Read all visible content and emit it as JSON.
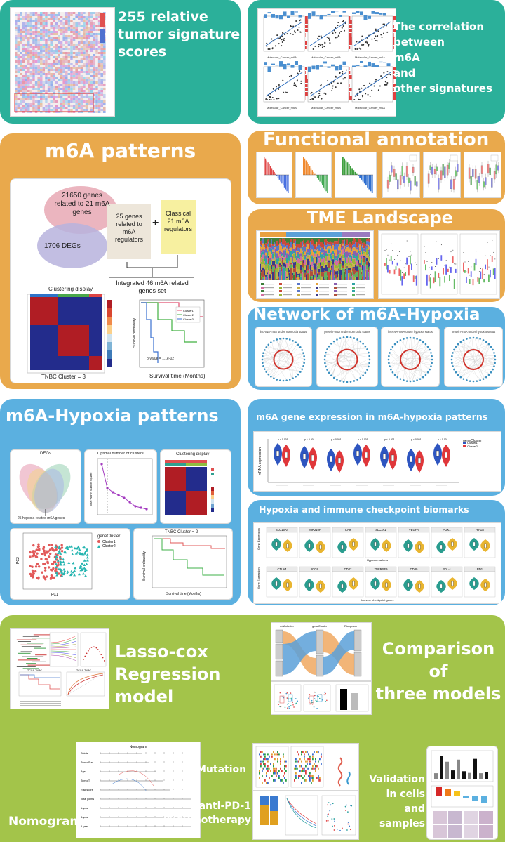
{
  "row1": {
    "signatures_title": "255 relative tumor signature scores",
    "signatures_lines": [
      "255 relative",
      "tumor signature",
      "scores"
    ],
    "correlation_lines": [
      "The correlation",
      "between",
      "m6A",
      "and",
      "other signatures"
    ],
    "corr_xlabels": [
      "Molecular_Cancer_m6A",
      "Molecular_Cancer_m6A",
      "Molecular_Cancer_m6A",
      "Molecular_Cancer_m6A",
      "Molecular_Cancer_m6A",
      "Molecular_Cancer_m6A"
    ]
  },
  "m6a_patterns": {
    "title": "m6A patterns",
    "venn_top": "21650 genes related to 21 m6A genes",
    "venn_bottom": "1706 DEGs",
    "box_genes": "25 genes related to m6A regulators",
    "plus": "+",
    "box_classical": "Classical 21 m6A regulators",
    "integrated": "Integrated 46 m6A related genes set",
    "clustering_title": "Clustering display",
    "cluster_caption": "TNBC Cluster = 3",
    "survival_xlabel": "Survival time (Months)",
    "survival_ylabel": "Survival probability",
    "pvalue": "p-value = 1.1e-02",
    "legend_labels": [
      "Cluster1",
      "Cluster2",
      "Cluster3"
    ]
  },
  "functional": {
    "title": "Functional annotation"
  },
  "tme": {
    "title": "TME Landscape"
  },
  "network": {
    "title": "Network of m6A-Hypoxia",
    "labels": [
      "lncRNA-m6A under normoxia status",
      "protein-m6A under normoxia status",
      "lncRNA-m6A under hypoxia status",
      "protein-m6A under hypoxia status"
    ]
  },
  "hypoxia_patterns": {
    "title": "m6A-Hypoxia patterns",
    "venn_title": "DEGs",
    "venn_sets": [
      "GSE76250",
      "TCGA-BRCA",
      "FUSCC-TNBC",
      "METABRIC-TNBC"
    ],
    "venn_caption": "25 hypoxia related m6A genes",
    "optimal_title": "Optimal number of clusters",
    "optimal_ylabel": "Total Within Sum of Square",
    "clustering_title": "Clustering display",
    "pca_legend_title": "geneCluster",
    "pca_legend": [
      "Cluster1",
      "Cluster2"
    ],
    "pca_xlabel": "PC1",
    "pca_ylabel": "PC2",
    "surv_title": "TNBC Cluster = 2",
    "surv_xlabel": "Survival time (Months)",
    "surv_ylabel": "Survival probability"
  },
  "expression": {
    "title": "m6A gene expression in m6A-hypoxia patterns",
    "ylabel": "mRNA expression",
    "legend_title": "geneCluster",
    "legend": [
      "Cluster1",
      "Cluster2"
    ],
    "pvalues": [
      "p < 0.001",
      "p < 0.001",
      "p < 0.001",
      "p < 0.001",
      "p < 0.001",
      "p < 0.001",
      "p < 0.001"
    ]
  },
  "checkpoint": {
    "title": "Hypoxia and immune checkpoint biomarks",
    "row1_genes": [
      "SLC16A4",
      "MIR210P",
      "CA9",
      "SLC2A1",
      "VEGFA",
      "PGK1",
      "HIF1A"
    ],
    "row2_genes": [
      "CTLA4",
      "ICOS",
      "CD27",
      "TNFRSF9",
      "CD80",
      "PDL-1",
      "PD1"
    ],
    "row1_caption": "Hypoxia markers",
    "row2_caption": "Immune checkpoint genes",
    "ylabel": "Gene Expression"
  },
  "bottom": {
    "lasso_lines": [
      "Lasso-cox",
      "Regression",
      "model"
    ],
    "comparison_lines": [
      "Comparison",
      "of",
      "three models"
    ],
    "nomogram": "Nomogram",
    "nomogram_title": "Nomogram",
    "nomogram_rows": [
      "Points",
      "TumorSize",
      "Age",
      "TumorT",
      "Risk score",
      "Total points",
      "1-year",
      "3-year",
      "5-year"
    ],
    "mutation": "Mutation",
    "antipd1_lines": [
      "anti-PD-1",
      "immunotherapy"
    ],
    "validation_lines": [
      "Validation",
      "in cells",
      "and",
      "samples"
    ],
    "sankey_headers": [
      "m6Acluster",
      "geneCluster",
      "Riskgroup"
    ],
    "roc_labels": [
      "TCGA-TNBC",
      "TCGA-TNBC"
    ]
  },
  "colors": {
    "teal": "#2bb09a",
    "orange": "#e9a94c",
    "blue": "#5bb0e0",
    "green": "#a3c44a",
    "heat_red": "#b01d24",
    "heat_blue": "#232c8c"
  }
}
